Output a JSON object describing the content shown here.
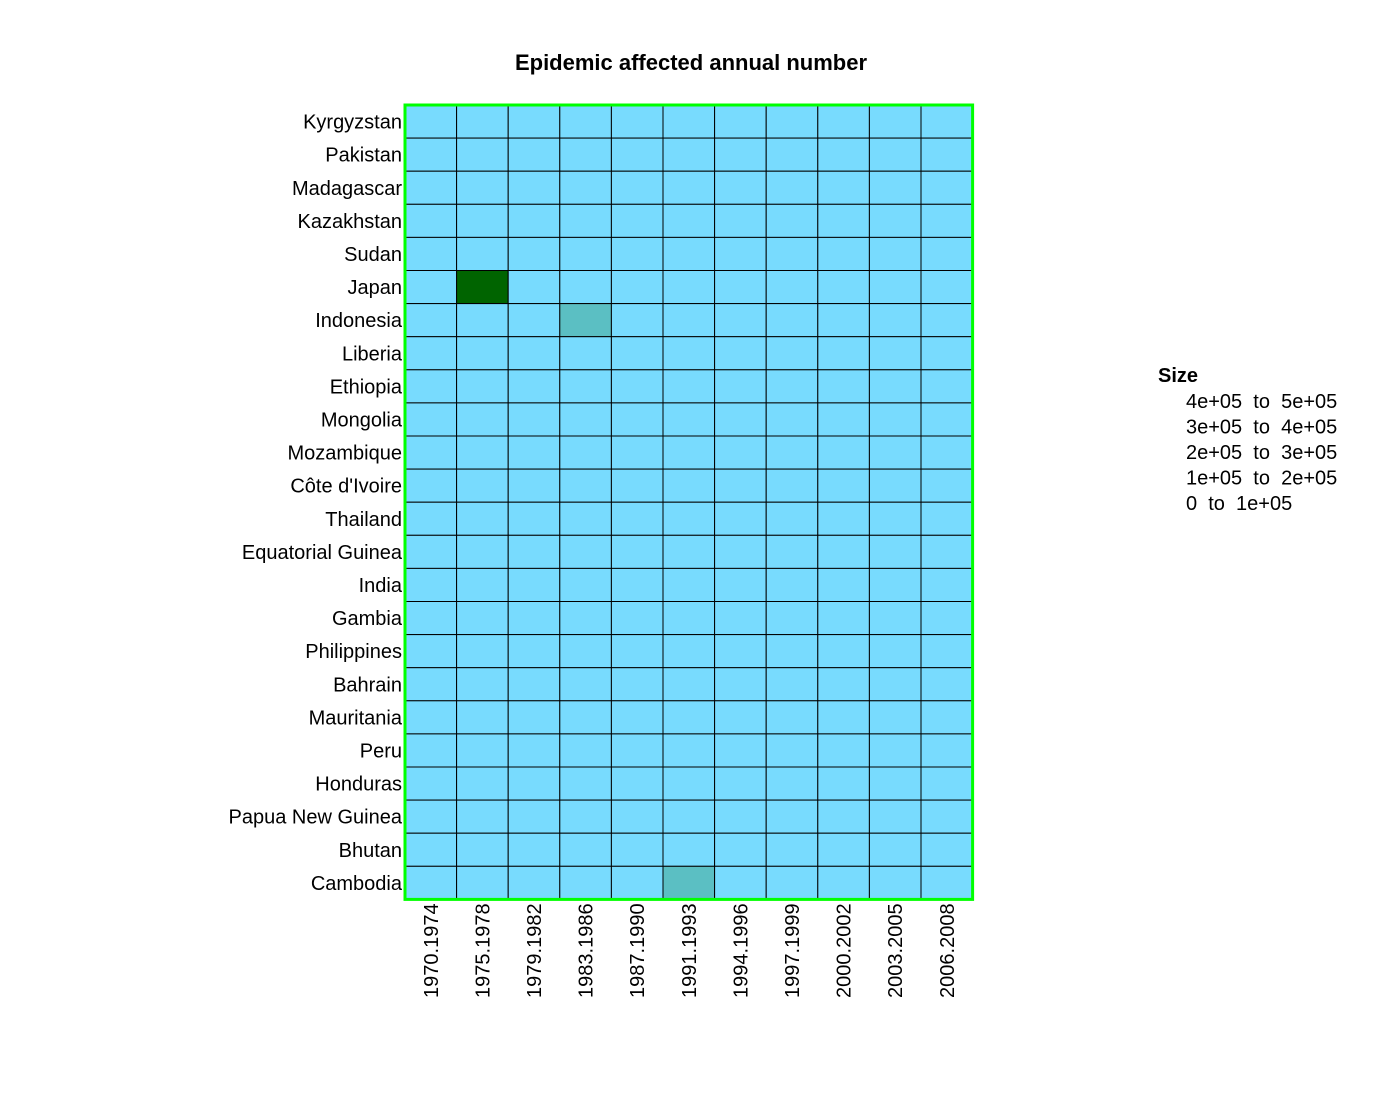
{
  "chart_data": {
    "type": "heatmap",
    "title": "Epidemic affected annual number",
    "rows": [
      "Kyrgyzstan",
      "Pakistan",
      "Madagascar",
      "Kazakhstan",
      "Sudan",
      "Japan",
      "Indonesia",
      "Liberia",
      "Ethiopia",
      "Mongolia",
      "Mozambique",
      "Côte d'Ivoire",
      "Thailand",
      "Equatorial Guinea",
      "India",
      "Gambia",
      "Philippines",
      "Bahrain",
      "Mauritania",
      "Peru",
      "Honduras",
      "Papua New Guinea",
      "Bhutan",
      "Cambodia"
    ],
    "columns": [
      "1970.1974",
      "1975.1978",
      "1979.1982",
      "1983.1986",
      "1987.1990",
      "1991.1993",
      "1994.1996",
      "1997.1999",
      "2000.2002",
      "2003.2005",
      "2006.2008"
    ],
    "values": [
      [
        0,
        0,
        0,
        0,
        0,
        0,
        0,
        0,
        0,
        0,
        0
      ],
      [
        0,
        0,
        0,
        0,
        0,
        0,
        0,
        0,
        0,
        0,
        0
      ],
      [
        0,
        0,
        0,
        0,
        0,
        0,
        0,
        0,
        0,
        0,
        0
      ],
      [
        0,
        0,
        0,
        0,
        0,
        0,
        0,
        0,
        0,
        0,
        0
      ],
      [
        0,
        0,
        0,
        0,
        0,
        0,
        0,
        0,
        0,
        0,
        0
      ],
      [
        0,
        450000,
        0,
        0,
        0,
        0,
        0,
        0,
        0,
        0,
        0
      ],
      [
        0,
        0,
        0,
        150000,
        0,
        0,
        0,
        0,
        0,
        0,
        0
      ],
      [
        0,
        0,
        0,
        0,
        0,
        0,
        0,
        0,
        0,
        0,
        0
      ],
      [
        0,
        0,
        0,
        0,
        0,
        0,
        0,
        0,
        0,
        0,
        0
      ],
      [
        0,
        0,
        0,
        0,
        0,
        0,
        0,
        0,
        0,
        0,
        0
      ],
      [
        0,
        0,
        0,
        0,
        0,
        0,
        0,
        0,
        0,
        0,
        0
      ],
      [
        0,
        0,
        0,
        0,
        0,
        0,
        0,
        0,
        0,
        0,
        0
      ],
      [
        0,
        0,
        0,
        0,
        0,
        0,
        0,
        0,
        0,
        0,
        0
      ],
      [
        0,
        0,
        0,
        0,
        0,
        0,
        0,
        0,
        0,
        0,
        0
      ],
      [
        0,
        0,
        0,
        0,
        0,
        0,
        0,
        0,
        0,
        0,
        0
      ],
      [
        0,
        0,
        0,
        0,
        0,
        0,
        0,
        0,
        0,
        0,
        0
      ],
      [
        0,
        0,
        0,
        0,
        0,
        0,
        0,
        0,
        0,
        0,
        0
      ],
      [
        0,
        0,
        0,
        0,
        0,
        0,
        0,
        0,
        0,
        0,
        0
      ],
      [
        0,
        0,
        0,
        0,
        0,
        0,
        0,
        0,
        0,
        0,
        0
      ],
      [
        0,
        0,
        0,
        0,
        0,
        0,
        0,
        0,
        0,
        0,
        0
      ],
      [
        0,
        0,
        0,
        0,
        0,
        0,
        0,
        0,
        0,
        0,
        0
      ],
      [
        0,
        0,
        0,
        0,
        0,
        0,
        0,
        0,
        0,
        0,
        0
      ],
      [
        0,
        0,
        0,
        0,
        0,
        0,
        0,
        0,
        0,
        0,
        0
      ],
      [
        0,
        0,
        0,
        0,
        0,
        150000,
        0,
        0,
        0,
        0,
        0
      ]
    ],
    "legend": {
      "title": "Size",
      "placement": "right",
      "bins": [
        {
          "label": "4e+05  to  5e+05",
          "min": 400000,
          "max": 500000,
          "color": "#006400"
        },
        {
          "label": "3e+05  to  4e+05",
          "min": 300000,
          "max": 400000,
          "color": "#1a7a33"
        },
        {
          "label": "2e+05  to  3e+05",
          "min": 200000,
          "max": 300000,
          "color": "#358f66"
        },
        {
          "label": "1e+05  to  2e+05",
          "min": 100000,
          "max": 200000,
          "color": "#5bbfc3"
        },
        {
          "label": "0  to  1e+05",
          "min": 0,
          "max": 100000,
          "color": "#78dbfe"
        }
      ]
    },
    "colors": {
      "cell_border": "#000000",
      "frame": "#00ff00"
    }
  }
}
